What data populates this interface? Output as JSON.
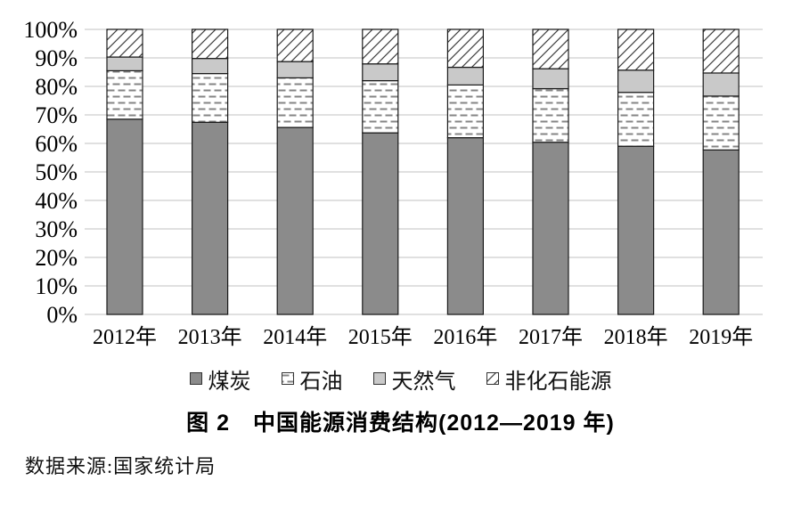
{
  "figure": {
    "caption": "图 2　中国能源消费结构(2012—2019 年)",
    "source_note": "数据来源:国家统计局"
  },
  "legend": {
    "items": [
      {
        "label": "煤炭"
      },
      {
        "label": "石油"
      },
      {
        "label": "天然气"
      },
      {
        "label": "非化石能源"
      }
    ]
  },
  "chart_data": {
    "type": "bar",
    "stacked": true,
    "unit": "%",
    "title": "图 2　中国能源消费结构(2012—2019 年)",
    "xlabel": "",
    "ylabel": "",
    "categories": [
      "2012年",
      "2013年",
      "2014年",
      "2015年",
      "2016年",
      "2017年",
      "2018年",
      "2019年"
    ],
    "series": [
      {
        "name": "煤炭",
        "values": [
          68.5,
          67.4,
          65.6,
          63.7,
          62.0,
          60.4,
          59.0,
          57.7
        ],
        "fill": "#8b8b8b",
        "pattern": "solid"
      },
      {
        "name": "石油",
        "values": [
          17.0,
          17.1,
          17.4,
          18.3,
          18.5,
          18.8,
          18.9,
          18.9
        ],
        "fill": "#ffffff",
        "pattern": "horizontal-dashes",
        "pattern_color": "#858585"
      },
      {
        "name": "天然气",
        "values": [
          4.8,
          5.3,
          5.7,
          5.9,
          6.2,
          7.0,
          7.8,
          8.1
        ],
        "fill": "#c9c9c9",
        "pattern": "solid"
      },
      {
        "name": "非化石能源",
        "values": [
          9.7,
          10.2,
          11.3,
          12.1,
          13.3,
          13.8,
          14.3,
          15.3
        ],
        "fill": "#ffffff",
        "pattern": "diagonal-hatch",
        "pattern_color": "#3f3f3f"
      }
    ],
    "y_ticks": [
      "0%",
      "10%",
      "20%",
      "30%",
      "40%",
      "50%",
      "60%",
      "70%",
      "80%",
      "90%",
      "100%"
    ],
    "ylim": [
      0,
      100
    ],
    "grid": true,
    "gridline_color": "#e0e0e0",
    "bar_border_color": "#1a1a1a",
    "legend_position": "bottom"
  }
}
